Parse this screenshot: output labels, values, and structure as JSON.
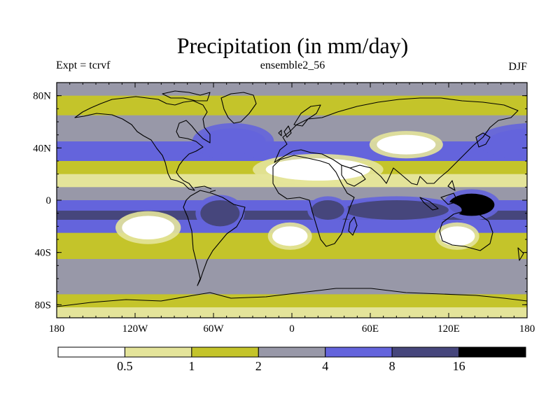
{
  "chart_data": {
    "type": "heatmap",
    "title": "Precipitation (in mm/day)",
    "subtitle_left": "Expt = tcrvf",
    "subtitle_center": "ensemble2_56",
    "subtitle_right": "DJF",
    "x_ticks": [
      "180",
      "120W",
      "60W",
      "0",
      "60E",
      "120E",
      "180"
    ],
    "x_tick_values": [
      -180,
      -120,
      -60,
      0,
      60,
      120,
      180
    ],
    "y_ticks": [
      "80N",
      "40N",
      "0",
      "40S",
      "80S"
    ],
    "y_tick_values": [
      80,
      40,
      0,
      -40,
      -80
    ],
    "xlim": [
      -180,
      180
    ],
    "ylim": [
      -90,
      90
    ],
    "colorbar": {
      "levels": [
        0.5,
        1,
        2,
        4,
        8,
        16
      ],
      "labels": [
        "0.5",
        "1",
        "2",
        "4",
        "8",
        "16"
      ],
      "colors": [
        "#ffffff",
        "#e4e49a",
        "#c4c42a",
        "#9898a8",
        "#6464dc",
        "#46467c",
        "#000000"
      ]
    },
    "zonal_profile": [
      {
        "lat": 90,
        "value": 3
      },
      {
        "lat": 80,
        "value": 1.5
      },
      {
        "lat": 65,
        "value": 2
      },
      {
        "lat": 55,
        "value": 3
      },
      {
        "lat": 45,
        "value": 5
      },
      {
        "lat": 30,
        "value": 1.5
      },
      {
        "lat": 20,
        "value": 0.6
      },
      {
        "lat": 10,
        "value": 3
      },
      {
        "lat": 0,
        "value": 6
      },
      {
        "lat": -8,
        "value": 9
      },
      {
        "lat": -15,
        "value": 4
      },
      {
        "lat": -25,
        "value": 1.5
      },
      {
        "lat": -35,
        "value": 1.5
      },
      {
        "lat": -45,
        "value": 3
      },
      {
        "lat": -55,
        "value": 3
      },
      {
        "lat": -62,
        "value": 2
      },
      {
        "lat": -72,
        "value": 1.5
      },
      {
        "lat": -82,
        "value": 0.8
      },
      {
        "lat": -90,
        "value": 0.5
      }
    ],
    "regions": [
      {
        "name": "sahara-arabia-dry",
        "lon": [
          -20,
          60
        ],
        "lat": [
          15,
          32
        ],
        "value": 0.2
      },
      {
        "name": "east-pacific-dry",
        "lon": [
          -130,
          -90
        ],
        "lat": [
          -30,
          -12
        ],
        "value": 0.2
      },
      {
        "name": "south-atlantic-dry",
        "lon": [
          -15,
          12
        ],
        "lat": [
          -35,
          -20
        ],
        "value": 0.3
      },
      {
        "name": "australia-dry",
        "lon": [
          113,
          140
        ],
        "lat": [
          -35,
          -20
        ],
        "value": 0.3
      },
      {
        "name": "central-asia-dry",
        "lon": [
          65,
          110
        ],
        "lat": [
          35,
          50
        ],
        "value": 0.3
      },
      {
        "name": "maritime-continent-max",
        "lon": [
          120,
          155
        ],
        "lat": [
          -12,
          5
        ],
        "value": 20
      },
      {
        "name": "indian-ocean-wet",
        "lon": [
          40,
          120
        ],
        "lat": [
          -15,
          0
        ],
        "value": 10
      },
      {
        "name": "amazon-wet",
        "lon": [
          -70,
          -40
        ],
        "lat": [
          -20,
          0
        ],
        "value": 9
      },
      {
        "name": "congo-wet",
        "lon": [
          15,
          40
        ],
        "lat": [
          -15,
          0
        ],
        "value": 9
      },
      {
        "name": "north-pacific-storm-track",
        "lon": [
          150,
          220
        ],
        "lat": [
          35,
          55
        ],
        "value": 6
      },
      {
        "name": "north-atlantic-storm-track",
        "lon": [
          -70,
          -20
        ],
        "lat": [
          35,
          55
        ],
        "value": 6
      }
    ]
  }
}
